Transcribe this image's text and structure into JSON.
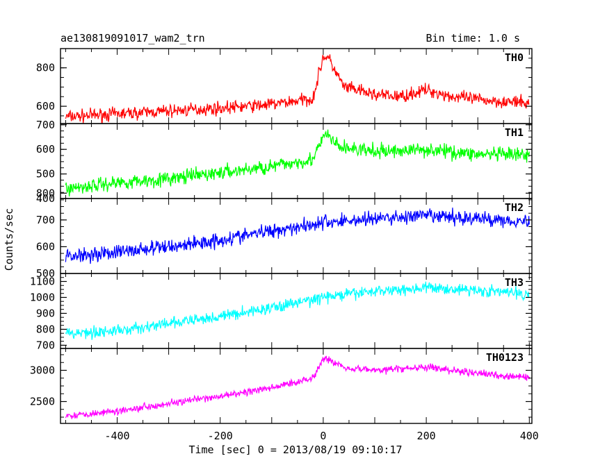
{
  "header": {
    "title": "ae130819091017_wam2_trn",
    "bin_time": "Bin time: 1.0 s"
  },
  "axes": {
    "xlabel": "Time [sec] 0 = 2013/08/19 09:10:17",
    "ylabel": "Counts/sec",
    "xlim": [
      -510,
      405
    ],
    "x_ticks": [
      -400,
      -200,
      0,
      200,
      400
    ]
  },
  "chart_data": {
    "type": "line",
    "title": "ae130819091017_wam2_trn",
    "xlabel": "Time [sec] 0 = 2013/08/19 09:10:17",
    "ylabel": "Counts/sec",
    "bin_time_s": 1.0,
    "grid": false,
    "panels": [
      {
        "name": "TH0",
        "color": "#ff0000",
        "ylim": [
          510,
          900
        ],
        "y_ticks": [
          600,
          800
        ],
        "x": [
          -500,
          -400,
          -300,
          -200,
          -100,
          -20,
          0,
          10,
          40,
          100,
          150,
          200,
          250,
          300,
          400
        ],
        "values": [
          545,
          560,
          575,
          590,
          610,
          640,
          860,
          850,
          700,
          660,
          650,
          685,
          650,
          635,
          615
        ]
      },
      {
        "name": "TH1",
        "color": "#00ff00",
        "ylim": [
          400,
          705
        ],
        "y_ticks": [
          400,
          500,
          600,
          700
        ],
        "x": [
          -500,
          -400,
          -300,
          -200,
          -100,
          -20,
          5,
          30,
          100,
          200,
          300,
          400
        ],
        "values": [
          440,
          465,
          480,
          505,
          530,
          560,
          665,
          610,
          590,
          600,
          580,
          575
        ]
      },
      {
        "name": "TH2",
        "color": "#0000ff",
        "ylim": [
          500,
          780
        ],
        "y_ticks": [
          500,
          600,
          700,
          800
        ],
        "x": [
          -500,
          -400,
          -300,
          -200,
          -100,
          0,
          100,
          200,
          300,
          400
        ],
        "values": [
          565,
          580,
          600,
          625,
          660,
          690,
          705,
          715,
          705,
          695
        ]
      },
      {
        "name": "TH3",
        "color": "#00ffff",
        "ylim": [
          680,
          1150
        ],
        "y_ticks": [
          700,
          800,
          900,
          1000,
          1100
        ],
        "x": [
          -500,
          -400,
          -300,
          -200,
          -100,
          0,
          100,
          200,
          300,
          400
        ],
        "values": [
          775,
          790,
          835,
          880,
          935,
          1000,
          1040,
          1060,
          1045,
          1020
        ]
      },
      {
        "name": "TH0123",
        "color": "#ff00ff",
        "ylim": [
          2150,
          3350
        ],
        "y_ticks": [
          2500,
          3000
        ],
        "x": [
          -500,
          -400,
          -300,
          -200,
          -100,
          -20,
          0,
          10,
          40,
          100,
          200,
          300,
          400
        ],
        "values": [
          2270,
          2350,
          2470,
          2580,
          2720,
          2880,
          3200,
          3170,
          3050,
          3000,
          3050,
          2950,
          2880
        ]
      }
    ]
  }
}
